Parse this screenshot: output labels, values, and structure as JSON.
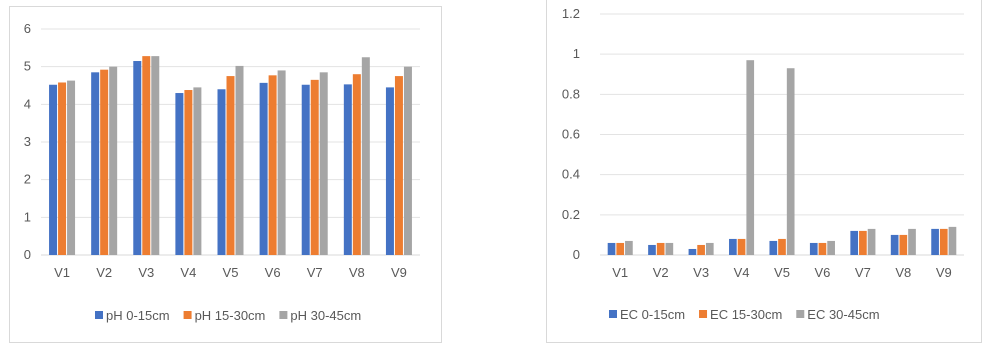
{
  "chart_data": [
    {
      "type": "bar",
      "title": "",
      "xlabel": "",
      "ylabel": "",
      "categories": [
        "V1",
        "V2",
        "V3",
        "V4",
        "V5",
        "V6",
        "V7",
        "V8",
        "V9"
      ],
      "ylim": [
        0,
        6
      ],
      "yticks": [
        "0",
        "1",
        "2",
        "3",
        "4",
        "5",
        "6"
      ],
      "grid": true,
      "legend": "bottom",
      "series": [
        {
          "name": "pH 0-15cm",
          "color": "#4472c4",
          "values": [
            4.52,
            4.85,
            5.15,
            4.3,
            4.4,
            4.57,
            4.52,
            4.53,
            4.45
          ]
        },
        {
          "name": "pH 15-30cm",
          "color": "#ed7d31",
          "values": [
            4.58,
            4.92,
            5.28,
            4.38,
            4.75,
            4.77,
            4.65,
            4.8,
            4.75
          ]
        },
        {
          "name": "pH 30-45cm",
          "color": "#a5a5a5",
          "values": [
            4.63,
            5.0,
            5.28,
            4.45,
            5.02,
            4.9,
            4.85,
            5.25,
            5.0
          ]
        }
      ]
    },
    {
      "type": "bar",
      "title": "",
      "xlabel": "",
      "ylabel": "",
      "categories": [
        "V1",
        "V2",
        "V3",
        "V4",
        "V5",
        "V6",
        "V7",
        "V8",
        "V9"
      ],
      "ylim": [
        0,
        1.2
      ],
      "yticks": [
        "0",
        "0.2",
        "0.4",
        "0.6",
        "0.8",
        "1",
        "1.2"
      ],
      "grid": true,
      "legend": "bottom",
      "series": [
        {
          "name": "EC 0-15cm",
          "color": "#4472c4",
          "values": [
            0.06,
            0.05,
            0.03,
            0.08,
            0.07,
            0.06,
            0.12,
            0.1,
            0.13
          ]
        },
        {
          "name": "EC 15-30cm",
          "color": "#ed7d31",
          "values": [
            0.06,
            0.06,
            0.05,
            0.08,
            0.08,
            0.06,
            0.12,
            0.1,
            0.13
          ]
        },
        {
          "name": "EC 30-45cm",
          "color": "#a5a5a5",
          "values": [
            0.07,
            0.06,
            0.06,
            0.97,
            0.93,
            0.07,
            0.13,
            0.13,
            0.14
          ]
        }
      ]
    }
  ]
}
